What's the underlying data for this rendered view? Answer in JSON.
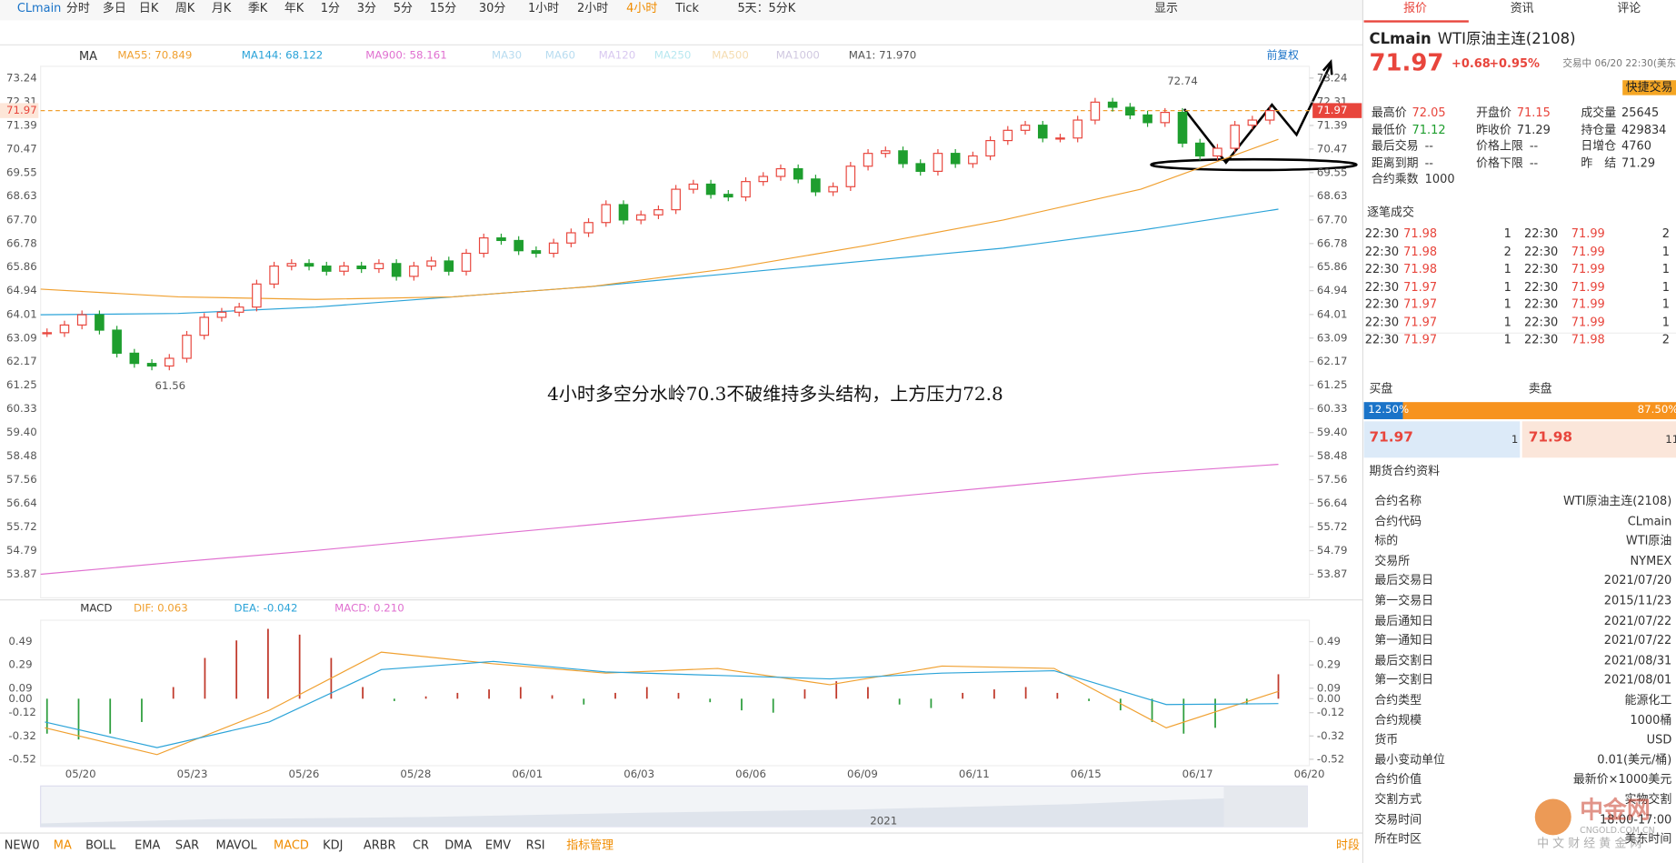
{
  "toolbar": {
    "symbol": "CLmain",
    "periods": [
      "分时",
      "多日",
      "日K",
      "周K",
      "月K",
      "季K",
      "年K",
      "1分",
      "3分",
      "5分",
      "15分",
      "30分",
      "1小时",
      "2小时",
      "4小时",
      "Tick",
      "5天：5分K"
    ],
    "display": "显示"
  },
  "chart": {
    "ma_label": "MA",
    "ma_legend": [
      {
        "text": "MA55: 70.849",
        "color": "#f0a030"
      },
      {
        "text": "MA144: 68.122",
        "color": "#2aa3d8"
      },
      {
        "text": "MA900: 58.161",
        "color": "#e070d0"
      },
      {
        "text": "MA30",
        "color": "#b8dcf0"
      },
      {
        "text": "MA60",
        "color": "#b8dcf0"
      },
      {
        "text": "MA120",
        "color": "#d8c8f0"
      },
      {
        "text": "MA250",
        "color": "#b8e8f0"
      },
      {
        "text": "MA500",
        "color": "#f5dcb0"
      },
      {
        "text": "MA1000",
        "color": "#d0c8e0"
      },
      {
        "text": "MA1: 71.970",
        "color": "#555555"
      }
    ],
    "adjust": "前复权",
    "yticks": [
      73.24,
      72.31,
      71.39,
      70.47,
      69.55,
      68.63,
      {
        "value": 67.7,
        "label": "67.70"
      },
      66.78,
      65.86,
      64.94,
      64.01,
      63.09,
      62.17,
      61.25,
      60.33,
      {
        "value": 59.4,
        "label": "59.40"
      },
      58.48,
      57.56,
      56.64,
      55.72,
      54.79,
      53.87
    ],
    "current_price": 71.97,
    "high_label": 72.74,
    "low_label": 61.56,
    "annotation": "4小时多空分水岭70.3不破维持多头结构，上方压力72.8",
    "closes": [
      63.3,
      63.6,
      64.0,
      63.4,
      62.5,
      62.1,
      62.0,
      62.3,
      63.2,
      63.9,
      64.1,
      64.3,
      65.2,
      65.9,
      66.0,
      65.9,
      65.7,
      65.9,
      65.8,
      66.0,
      65.5,
      65.9,
      66.1,
      65.7,
      66.4,
      67.0,
      66.9,
      66.5,
      66.4,
      66.8,
      67.2,
      67.6,
      68.3,
      67.7,
      67.9,
      68.1,
      68.9,
      69.1,
      68.7,
      68.6,
      69.2,
      69.4,
      69.7,
      69.3,
      68.8,
      69.0,
      69.8,
      70.3,
      70.4,
      69.9,
      69.6,
      70.3,
      69.9,
      70.2,
      70.8,
      71.2,
      71.4,
      70.9,
      70.9,
      71.6,
      72.3,
      72.1,
      71.8,
      71.5,
      71.9,
      70.7,
      70.2,
      70.5,
      71.4,
      71.6,
      71.97
    ],
    "ma55": [
      65.0,
      64.7,
      64.6,
      64.7,
      65.1,
      65.8,
      66.7,
      67.7,
      68.9,
      70.849
    ],
    "ma144": [
      64.0,
      64.05,
      64.3,
      64.7,
      65.1,
      65.6,
      66.1,
      66.6,
      67.3,
      68.122
    ],
    "ma900": [
      53.87,
      54.35,
      54.8,
      55.3,
      55.8,
      56.3,
      56.8,
      57.3,
      57.8,
      58.161
    ],
    "dates": [
      "05/20",
      "05/23",
      "05/26",
      "05/28",
      "06/01",
      "06/03",
      "06/06",
      "06/09",
      "06/11",
      "06/15",
      "06/17",
      "06/20"
    ]
  },
  "macd": {
    "title": "MACD",
    "legend": [
      {
        "text": "DIF: 0.063",
        "color": "#f0a030"
      },
      {
        "text": "DEA: -0.042",
        "color": "#2aa3d8"
      },
      {
        "text": "MACD: 0.210",
        "color": "#e070d0"
      }
    ],
    "yticks": [
      0.49,
      0.29,
      0.09,
      {
        "value": 0,
        "label": "0.00"
      },
      -0.12,
      -0.32,
      -0.52
    ],
    "dif": [
      -0.25,
      -0.48,
      -0.1,
      0.4,
      0.3,
      0.22,
      0.26,
      0.12,
      0.28,
      0.26,
      -0.25,
      0.063
    ],
    "dea": [
      -0.2,
      -0.42,
      -0.2,
      0.25,
      0.32,
      0.23,
      0.2,
      0.17,
      0.22,
      0.24,
      -0.05,
      -0.042
    ],
    "hist": [
      -0.3,
      -0.35,
      -0.3,
      -0.2,
      0.1,
      0.35,
      0.5,
      0.6,
      0.55,
      0.35,
      0.1,
      -0.02,
      0.02,
      0.05,
      0.08,
      0.1,
      0.03,
      -0.05,
      0.05,
      0.1,
      0.05,
      -0.03,
      -0.1,
      -0.12,
      0.08,
      0.15,
      0.1,
      -0.05,
      -0.08,
      0.05,
      0.08,
      0.1,
      0.05,
      -0.02,
      -0.1,
      -0.2,
      -0.3,
      -0.25,
      -0.05,
      0.21
    ]
  },
  "navigator": {
    "year": "2021"
  },
  "bottom_tabs": [
    "NEW0",
    "MA",
    "BOLL",
    "EMA",
    "SAR",
    "MAVOL",
    "MACD",
    "KDJ",
    "ARBR",
    "CR",
    "DMA",
    "EMV",
    "RSI",
    "指标管理"
  ],
  "period_btn": "时段",
  "quote": {
    "tabs": [
      "报价",
      "资讯",
      "评论"
    ],
    "symbol": "CLmain",
    "name": "WTI原油主连(2108)",
    "price": "71.97",
    "change": "+0.68",
    "pct": "+0.95%",
    "status": "交易中 06/20 22:30(美东)",
    "quick_trade": "快捷交易",
    "stats": [
      [
        "最高价",
        "72.05"
      ],
      [
        "开盘价",
        "71.15"
      ],
      [
        "成交量",
        "25645"
      ],
      [
        "最低价",
        "71.12"
      ],
      [
        "昨收价",
        "71.29"
      ],
      [
        "持仓量",
        "429834"
      ],
      [
        "最后交易",
        "--"
      ],
      [
        "价格上限",
        "--"
      ],
      [
        "日增仓",
        "4760"
      ],
      [
        "距离到期",
        "--"
      ],
      [
        "价格下限",
        "--"
      ],
      [
        "昨　结",
        "71.29"
      ],
      [
        "合约乘数",
        "1000"
      ]
    ],
    "trades_title": "逐笔成交",
    "trades": [
      [
        "22:30",
        "71.98",
        "1",
        "22:30",
        "71.99",
        "2"
      ],
      [
        "22:30",
        "71.98",
        "2",
        "22:30",
        "71.99",
        "1"
      ],
      [
        "22:30",
        "71.98",
        "1",
        "22:30",
        "71.99",
        "1"
      ],
      [
        "22:30",
        "71.97",
        "1",
        "22:30",
        "71.99",
        "1"
      ],
      [
        "22:30",
        "71.97",
        "1",
        "22:30",
        "71.99",
        "1"
      ],
      [
        "22:30",
        "71.97",
        "1",
        "22:30",
        "71.99",
        "1"
      ],
      [
        "22:30",
        "71.97",
        "1",
        "22:30",
        "71.98",
        "2"
      ]
    ],
    "book": {
      "bid_title": "买盘",
      "ask_title": "卖盘",
      "bid_pct": {
        "value": 12.5,
        "label": "12.50%"
      },
      "ask_pct": {
        "value": 87.5,
        "label": "87.50%"
      },
      "bid": "71.97",
      "bid_qty": "1",
      "ask": "71.98",
      "ask_qty": "11"
    },
    "info_title": "期货合约资料",
    "info": [
      [
        "合约名称",
        "WTI原油主连(2108)"
      ],
      [
        "合约代码",
        "CLmain"
      ],
      [
        "标的",
        "WTI原油"
      ],
      [
        "交易所",
        "NYMEX"
      ],
      [
        "最后交易日",
        "2021/07/20"
      ],
      [
        "第一交易日",
        "2015/11/23"
      ],
      [
        "最后通知日",
        "2021/07/22"
      ],
      [
        "第一通知日",
        "2021/07/22"
      ],
      [
        "最后交割日",
        "2021/08/31"
      ],
      [
        "第一交割日",
        "2021/08/01"
      ],
      [
        "合约类型",
        "能源化工"
      ],
      [
        "合约规模",
        "1000桶"
      ],
      [
        "货币",
        "USD"
      ],
      [
        "最小变动单位",
        "0.01(美元/桶)"
      ],
      [
        "合约价值",
        "最新价×1000美元"
      ],
      [
        "交割方式",
        "实物交割"
      ],
      [
        "交易时间",
        "18:00-17:00"
      ],
      [
        "所在时区",
        "美东时间"
      ]
    ]
  },
  "watermark": {
    "brand": "中金网",
    "site": "CNGOLD.COM.CN",
    "slogan": "中 文 财 经 黄 金 网"
  }
}
